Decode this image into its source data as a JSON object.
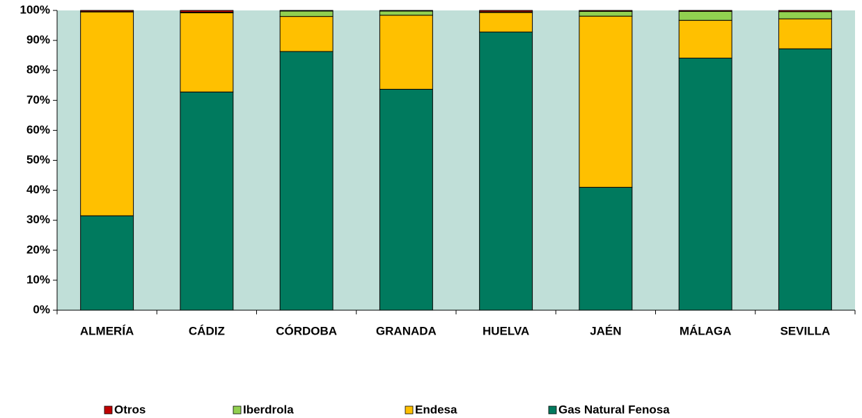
{
  "chart_data": {
    "type": "stacked_bar",
    "categories": [
      "ALMERÍA",
      "CÁDIZ",
      "CÓRDOBA",
      "GRANADA",
      "HUELVA",
      "JAÉN",
      "MÁLAGA",
      "SEVILLA"
    ],
    "series": [
      {
        "name": "Gas Natural Fenosa",
        "color": "#007a5e",
        "values": [
          31.5,
          72.8,
          86.3,
          73.7,
          92.8,
          41.0,
          84.1,
          87.2
        ]
      },
      {
        "name": "Endesa",
        "color": "#ffc000",
        "values": [
          68.0,
          26.4,
          11.7,
          24.7,
          6.5,
          57.1,
          12.6,
          10.0
        ]
      },
      {
        "name": "Iberdrola",
        "color": "#92d050",
        "values": [
          0.1,
          0.2,
          1.8,
          1.4,
          0.2,
          1.6,
          3.0,
          2.4
        ]
      },
      {
        "name": "Otros",
        "color": "#c00000",
        "values": [
          0.4,
          0.6,
          0.2,
          0.2,
          0.5,
          0.3,
          0.3,
          0.4
        ]
      }
    ],
    "ylim": [
      0,
      100
    ],
    "yticks": [
      {
        "value": 0,
        "label": "0%"
      },
      {
        "value": 10,
        "label": "10%"
      },
      {
        "value": 20,
        "label": "20%"
      },
      {
        "value": 30,
        "label": "30%"
      },
      {
        "value": 40,
        "label": "40%"
      },
      {
        "value": 50,
        "label": "50%"
      },
      {
        "value": 60,
        "label": "60%"
      },
      {
        "value": 70,
        "label": "70%"
      },
      {
        "value": 80,
        "label": "80%"
      },
      {
        "value": 90,
        "label": "90%"
      },
      {
        "value": 100,
        "label": "100%"
      }
    ],
    "plot_background": "#c0dfd8",
    "legend": "bottom"
  }
}
